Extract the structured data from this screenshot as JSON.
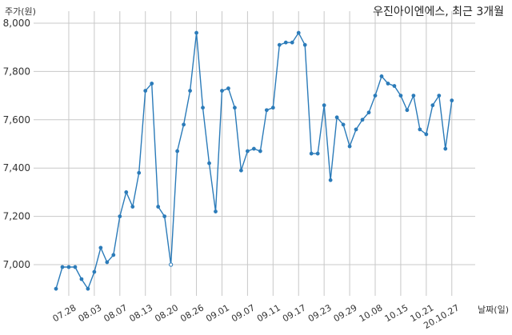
{
  "chart_data": {
    "type": "line",
    "title": "우진아이엔에스, 최근 3개월",
    "ylabel": "주가(원)",
    "xlabel": "날짜(일)",
    "ylim": [
      6860,
      8010
    ],
    "yticks": [
      7000,
      7200,
      7400,
      7600,
      7800,
      8000
    ],
    "ytick_labels": [
      "7,000",
      "7,200",
      "7,400",
      "7,600",
      "7,800",
      "8,000"
    ],
    "xtick_labels": [
      "07.28",
      "08.03",
      "08.07",
      "08.13",
      "08.20",
      "08.26",
      "09.01",
      "09.07",
      "09.11",
      "09.17",
      "09.23",
      "09.29",
      "10.08",
      "10.15",
      "10.21",
      "20.10.27"
    ],
    "xtick_index": [
      2,
      6,
      10,
      14,
      18,
      22,
      26,
      30,
      34,
      38,
      42,
      46,
      50,
      54,
      58,
      62
    ],
    "grid": true,
    "color": "#2b7bb9",
    "values": [
      6900,
      6990,
      6990,
      6990,
      6940,
      6900,
      6970,
      7070,
      7010,
      7040,
      7200,
      7300,
      7240,
      7380,
      7720,
      7750,
      7240,
      7200,
      7000,
      7470,
      7580,
      7720,
      7960,
      7650,
      7420,
      7220,
      7720,
      7730,
      7650,
      7390,
      7470,
      7480,
      7470,
      7640,
      7650,
      7910,
      7920,
      7920,
      7960,
      7910,
      7460,
      7460,
      7660,
      7350,
      7610,
      7580,
      7490,
      7560,
      7600,
      7630,
      7700,
      7780,
      7750,
      7740,
      7700,
      7640,
      7700,
      7560,
      7540,
      7660,
      7700,
      7480,
      7680
    ],
    "open_point_index": 18
  }
}
